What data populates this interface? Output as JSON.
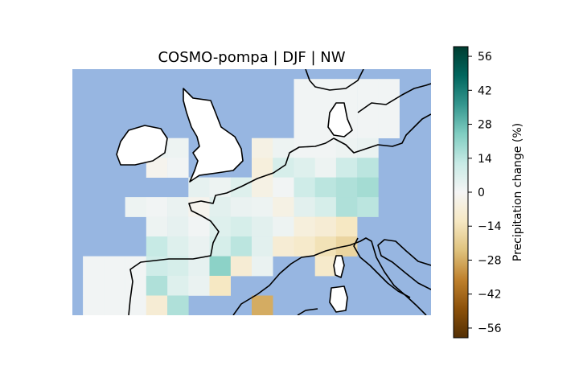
{
  "title": "COSMO-pompa | DJF | NW",
  "colorbar": {
    "label": "Precipitation change (%)",
    "ticks": [
      -56,
      -42,
      -28,
      -14,
      0,
      14,
      28,
      42,
      56
    ],
    "tick_labels": [
      "−56",
      "−42",
      "−28",
      "−14",
      "0",
      "14",
      "28",
      "42",
      "56"
    ],
    "range": [
      -60,
      60
    ],
    "colormap": "BrBG",
    "stops": [
      "#543005",
      "#8c510a",
      "#bf812d",
      "#dfc27d",
      "#f6e8c3",
      "#f5f5f5",
      "#c7eae5",
      "#80cdc1",
      "#35978f",
      "#01665e",
      "#003c30"
    ]
  },
  "colors": {
    "ocean": "#97b6e1",
    "land": "#ffffff",
    "coastline": "#000000"
  },
  "chart_data": {
    "type": "heatmap",
    "title": "COSMO-pompa | DJF | NW",
    "colorbar_label": "Precipitation change (%)",
    "value_range": [
      -60,
      60
    ],
    "grid": {
      "lon": [
        -10,
        -8,
        -6,
        -4,
        -2,
        0,
        2,
        4,
        6,
        8,
        10,
        12,
        14,
        16,
        18,
        20,
        22
      ],
      "lat": [
        61,
        60,
        59,
        58,
        57,
        56,
        55,
        54,
        53,
        52,
        51,
        50,
        49,
        48,
        47,
        46,
        45,
        44,
        43,
        42,
        41,
        40,
        39,
        38
      ]
    },
    "cells": [
      {
        "lon": 12,
        "lat": 60,
        "value": 1
      },
      {
        "lon": 14,
        "lat": 60,
        "value": 1
      },
      {
        "lon": 16,
        "lat": 60,
        "value": 1
      },
      {
        "lon": 18,
        "lat": 60,
        "value": 1
      },
      {
        "lon": 20,
        "lat": 60,
        "value": 1
      },
      {
        "lon": 12,
        "lat": 58,
        "value": 1
      },
      {
        "lon": 14,
        "lat": 58,
        "value": 1
      },
      {
        "lon": 16,
        "lat": 58,
        "value": 1
      },
      {
        "lon": 18,
        "lat": 58,
        "value": 1
      },
      {
        "lon": 20,
        "lat": 58,
        "value": 1
      },
      {
        "lon": 12,
        "lat": 56,
        "value": 1
      },
      {
        "lon": 14,
        "lat": 56,
        "value": 1
      },
      {
        "lon": 16,
        "lat": 56,
        "value": 1
      },
      {
        "lon": 18,
        "lat": 56,
        "value": 1
      },
      {
        "lon": 20,
        "lat": 56,
        "value": 1
      },
      {
        "lon": -2,
        "lat": 54,
        "value": 3
      },
      {
        "lon": 0,
        "lat": 54,
        "value": 2
      },
      {
        "lon": 8,
        "lat": 54,
        "value": -4
      },
      {
        "lon": 10,
        "lat": 54,
        "value": 2
      },
      {
        "lon": 12,
        "lat": 54,
        "value": 1
      },
      {
        "lon": 14,
        "lat": 54,
        "value": 1
      },
      {
        "lon": 16,
        "lat": 54,
        "value": 2
      },
      {
        "lon": 18,
        "lat": 54,
        "value": 3
      },
      {
        "lon": -2,
        "lat": 52,
        "value": -2
      },
      {
        "lon": 0,
        "lat": 52,
        "value": 1
      },
      {
        "lon": 8,
        "lat": 52,
        "value": -6
      },
      {
        "lon": 10,
        "lat": 52,
        "value": 8
      },
      {
        "lon": 12,
        "lat": 52,
        "value": 6
      },
      {
        "lon": 14,
        "lat": 52,
        "value": 2
      },
      {
        "lon": 16,
        "lat": 52,
        "value": 10
      },
      {
        "lon": 18,
        "lat": 52,
        "value": 14
      },
      {
        "lon": 2,
        "lat": 50,
        "value": 4
      },
      {
        "lon": 4,
        "lat": 50,
        "value": 2
      },
      {
        "lon": 6,
        "lat": 50,
        "value": 6
      },
      {
        "lon": 8,
        "lat": 50,
        "value": -4
      },
      {
        "lon": 10,
        "lat": 50,
        "value": 1
      },
      {
        "lon": 12,
        "lat": 50,
        "value": 10
      },
      {
        "lon": 14,
        "lat": 50,
        "value": 14
      },
      {
        "lon": 16,
        "lat": 50,
        "value": 16
      },
      {
        "lon": 18,
        "lat": 50,
        "value": 18
      },
      {
        "lon": -4,
        "lat": 48,
        "value": 2
      },
      {
        "lon": -2,
        "lat": 48,
        "value": 1
      },
      {
        "lon": 0,
        "lat": 48,
        "value": 3
      },
      {
        "lon": 2,
        "lat": 48,
        "value": -2
      },
      {
        "lon": 4,
        "lat": 48,
        "value": 5
      },
      {
        "lon": 6,
        "lat": 48,
        "value": 3
      },
      {
        "lon": 8,
        "lat": 48,
        "value": 2
      },
      {
        "lon": 10,
        "lat": 48,
        "value": -4
      },
      {
        "lon": 12,
        "lat": 48,
        "value": 5
      },
      {
        "lon": 14,
        "lat": 48,
        "value": 8
      },
      {
        "lon": 16,
        "lat": 48,
        "value": 16
      },
      {
        "lon": 18,
        "lat": 48,
        "value": 14
      },
      {
        "lon": -2,
        "lat": 46,
        "value": 2
      },
      {
        "lon": 0,
        "lat": 46,
        "value": 4
      },
      {
        "lon": 2,
        "lat": 46,
        "value": 1
      },
      {
        "lon": 4,
        "lat": 46,
        "value": 6
      },
      {
        "lon": 6,
        "lat": 46,
        "value": 8
      },
      {
        "lon": 8,
        "lat": 46,
        "value": 5
      },
      {
        "lon": 10,
        "lat": 46,
        "value": 2
      },
      {
        "lon": 12,
        "lat": 46,
        "value": -6
      },
      {
        "lon": 14,
        "lat": 46,
        "value": -8
      },
      {
        "lon": 16,
        "lat": 46,
        "value": -12
      },
      {
        "lon": -2,
        "lat": 44,
        "value": 12
      },
      {
        "lon": 0,
        "lat": 44,
        "value": 6
      },
      {
        "lon": 2,
        "lat": 44,
        "value": 3
      },
      {
        "lon": 4,
        "lat": 44,
        "value": 8
      },
      {
        "lon": 6,
        "lat": 44,
        "value": 14
      },
      {
        "lon": 8,
        "lat": 44,
        "value": 5
      },
      {
        "lon": 10,
        "lat": 44,
        "value": -8
      },
      {
        "lon": 12,
        "lat": 44,
        "value": -10
      },
      {
        "lon": 14,
        "lat": 44,
        "value": -14
      },
      {
        "lon": 16,
        "lat": 44,
        "value": -18
      },
      {
        "lon": -8,
        "lat": 42,
        "value": 1
      },
      {
        "lon": -6,
        "lat": 42,
        "value": 1
      },
      {
        "lon": -4,
        "lat": 42,
        "value": 1
      },
      {
        "lon": -2,
        "lat": 42,
        "value": 10
      },
      {
        "lon": 0,
        "lat": 42,
        "value": 8
      },
      {
        "lon": 2,
        "lat": 42,
        "value": 4
      },
      {
        "lon": 4,
        "lat": 42,
        "value": 22
      },
      {
        "lon": 6,
        "lat": 42,
        "value": -8
      },
      {
        "lon": 8,
        "lat": 42,
        "value": 3
      },
      {
        "lon": 14,
        "lat": 42,
        "value": -10
      },
      {
        "lon": -8,
        "lat": 40,
        "value": 1
      },
      {
        "lon": -6,
        "lat": 40,
        "value": 1
      },
      {
        "lon": -4,
        "lat": 40,
        "value": 1
      },
      {
        "lon": -2,
        "lat": 40,
        "value": 16
      },
      {
        "lon": 0,
        "lat": 40,
        "value": 6
      },
      {
        "lon": 2,
        "lat": 40,
        "value": 3
      },
      {
        "lon": 4,
        "lat": 40,
        "value": -12
      },
      {
        "lon": -8,
        "lat": 38,
        "value": 1
      },
      {
        "lon": -6,
        "lat": 38,
        "value": 1
      },
      {
        "lon": -4,
        "lat": 38,
        "value": 1
      },
      {
        "lon": -2,
        "lat": 38,
        "value": -8
      },
      {
        "lon": 0,
        "lat": 38,
        "value": 16
      },
      {
        "lon": 8,
        "lat": 38,
        "value": -28
      }
    ]
  }
}
